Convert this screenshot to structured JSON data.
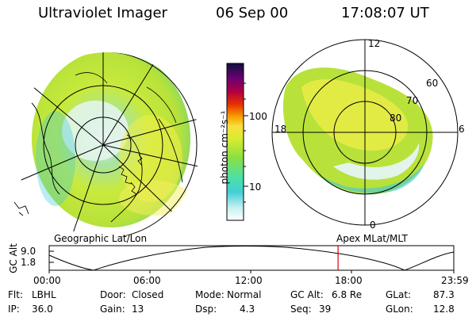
{
  "header": {
    "title": "Ultraviolet Imager",
    "date": "06 Sep 00",
    "time": "17:08:07 UT"
  },
  "left_panel": {
    "label": "Geographic Lat/Lon"
  },
  "right_panel": {
    "label": "Apex MLat/MLT",
    "mlt_labels": {
      "top": "12",
      "left": "18",
      "right": "6",
      "bottom": "0"
    },
    "lat_labels": [
      "60",
      "70",
      "80"
    ]
  },
  "colorbar": {
    "unit_label": "photon cm⁻²s⁻¹",
    "ticks": [
      "100",
      "10"
    ]
  },
  "altitude_plot": {
    "ylabel": "GC Alt",
    "yticks": [
      "9.0",
      "1.8"
    ],
    "xticks": [
      "00:00",
      "06:00",
      "12:00",
      "18:00",
      "23:59"
    ],
    "current_time_hours": 17.135
  },
  "info": {
    "filter": {
      "label": "Flt:",
      "value": "LBHL"
    },
    "door": {
      "label": "Door:",
      "value": "Closed"
    },
    "mode": {
      "label": "Mode:",
      "value": "Normal"
    },
    "gc_alt": {
      "label": "GC Alt:",
      "value": "6.8 Re"
    },
    "glat": {
      "label": "GLat:",
      "value": "87.3"
    },
    "ip": {
      "label": "IP:",
      "value": "36.0"
    },
    "gain": {
      "label": "Gain:",
      "value": "13"
    },
    "dsp": {
      "label": "Dsp:",
      "value": "4.3"
    },
    "seq": {
      "label": "Seq:",
      "value": "39"
    },
    "glon": {
      "label": "GLon:",
      "value": "12.8"
    }
  },
  "colors": {
    "marker": "#e00000",
    "image_green": "#b8e23a",
    "image_yellow": "#f0ee48",
    "image_cyan": "#3cc8dc"
  }
}
